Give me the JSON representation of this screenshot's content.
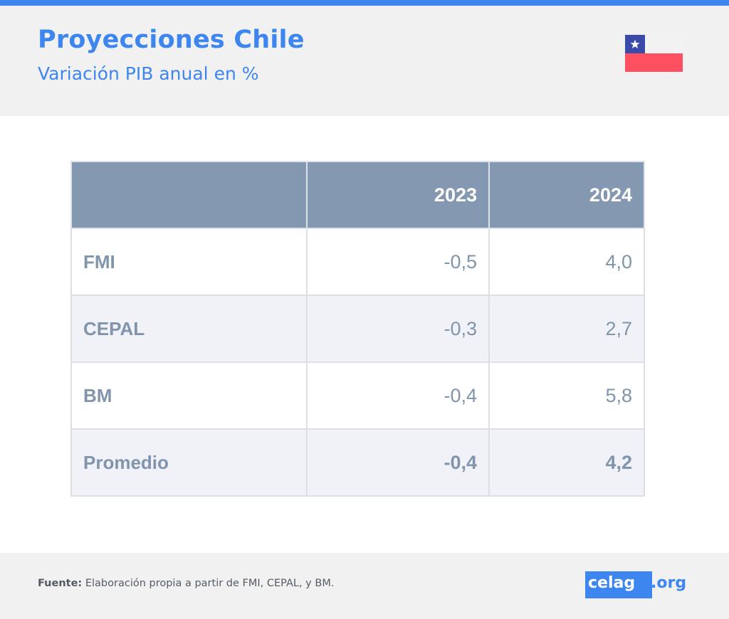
{
  "header": {
    "title": "Proyecciones Chile",
    "subtitle": "Variación PIB anual en %"
  },
  "flag": {
    "icon": "chile-flag-icon",
    "colors": {
      "blue": "#3a4aa8",
      "white": "#f2f2f2",
      "red": "#ff5061",
      "star": "#ffffff"
    }
  },
  "chart_data": {
    "type": "table",
    "title": "Proyecciones Chile",
    "subtitle": "Variación PIB anual en %",
    "columns": [
      "",
      "2023",
      "2024"
    ],
    "rows": [
      {
        "label": "FMI",
        "values": [
          "-0,5",
          "4,0"
        ]
      },
      {
        "label": "CEPAL",
        "values": [
          "-0,3",
          "2,7"
        ]
      },
      {
        "label": "BM",
        "values": [
          "-0,4",
          "5,8"
        ]
      },
      {
        "label": "Promedio",
        "values": [
          "-0,4",
          "4,2"
        ]
      }
    ],
    "numeric": {
      "2023": [
        -0.5,
        -0.3,
        -0.4,
        -0.4
      ],
      "2024": [
        4.0,
        2.7,
        5.8,
        4.2
      ]
    }
  },
  "footer": {
    "source_label": "Fuente:",
    "source_text": " Elaboración propia a partir de FMI, CEPAL, y BM.",
    "logo_main": "celag",
    "logo_suffix": ".org"
  },
  "colors": {
    "accent": "#3d86f0",
    "table_header": "#8499b1",
    "table_text": "#8095ac",
    "row_alt": "#f0f2f7",
    "band": "#f1f1f2"
  }
}
